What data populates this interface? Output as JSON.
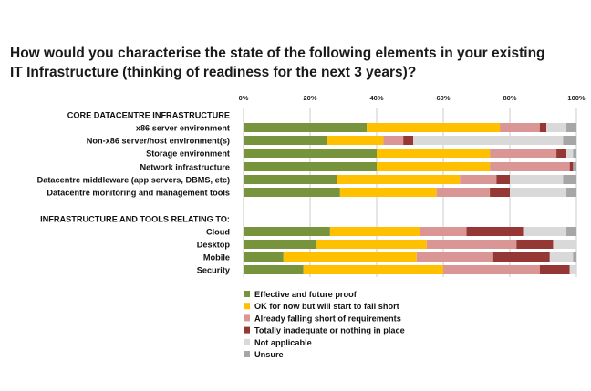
{
  "title_lines": [
    "How would you characterise the state of the following elements in your existing",
    "IT Infrastructure (thinking of readiness for the next 3 years)?"
  ],
  "chart_data": {
    "type": "bar",
    "orientation": "horizontal",
    "stacked": true,
    "percent_axis": true,
    "xlim": [
      0,
      100
    ],
    "x_ticks": [
      "0%",
      "20%",
      "40%",
      "60%",
      "80%",
      "100%"
    ],
    "grid": true,
    "legend_position": "bottom",
    "groups": [
      {
        "label": "CORE DATACENTRE INFRASTRUCTURE",
        "categories": [
          "x86 server environment",
          "Non-x86 server/host environment(s)",
          "Storage environment",
          "Network infrastructure",
          "Datacentre middleware (app servers, DBMS, etc)",
          "Datacentre monitoring and management tools"
        ]
      },
      {
        "label": "INFRASTRUCTURE AND TOOLS RELATING TO:",
        "categories": [
          "Cloud",
          "Desktop",
          "Mobile",
          "Security"
        ]
      }
    ],
    "series": [
      {
        "name": "Effective and future proof",
        "color": "#77933c",
        "values": [
          37,
          25,
          40,
          40,
          28,
          29,
          26,
          22,
          12,
          18
        ]
      },
      {
        "name": "OK for now but will start to fall short",
        "color": "#ffc000",
        "values": [
          40,
          17,
          34,
          34,
          37,
          29,
          27,
          33,
          40,
          42
        ]
      },
      {
        "name": "Already falling short of requirements",
        "color": "#d99694",
        "values": [
          12,
          6,
          20,
          24,
          11,
          16,
          14,
          27,
          23,
          29
        ]
      },
      {
        "name": "Totally inadequate or nothing in place",
        "color": "#953735",
        "values": [
          2,
          3,
          3,
          1,
          4,
          6,
          17,
          11,
          17,
          9
        ]
      },
      {
        "name": "Not applicable",
        "color": "#d9d9d9",
        "values": [
          6,
          45,
          2,
          0,
          16,
          17,
          13,
          7,
          7,
          2
        ]
      },
      {
        "name": "Unsure",
        "color": "#a6a6a6",
        "values": [
          3,
          4,
          1,
          1,
          4,
          3,
          3,
          0,
          1,
          0
        ]
      }
    ]
  }
}
